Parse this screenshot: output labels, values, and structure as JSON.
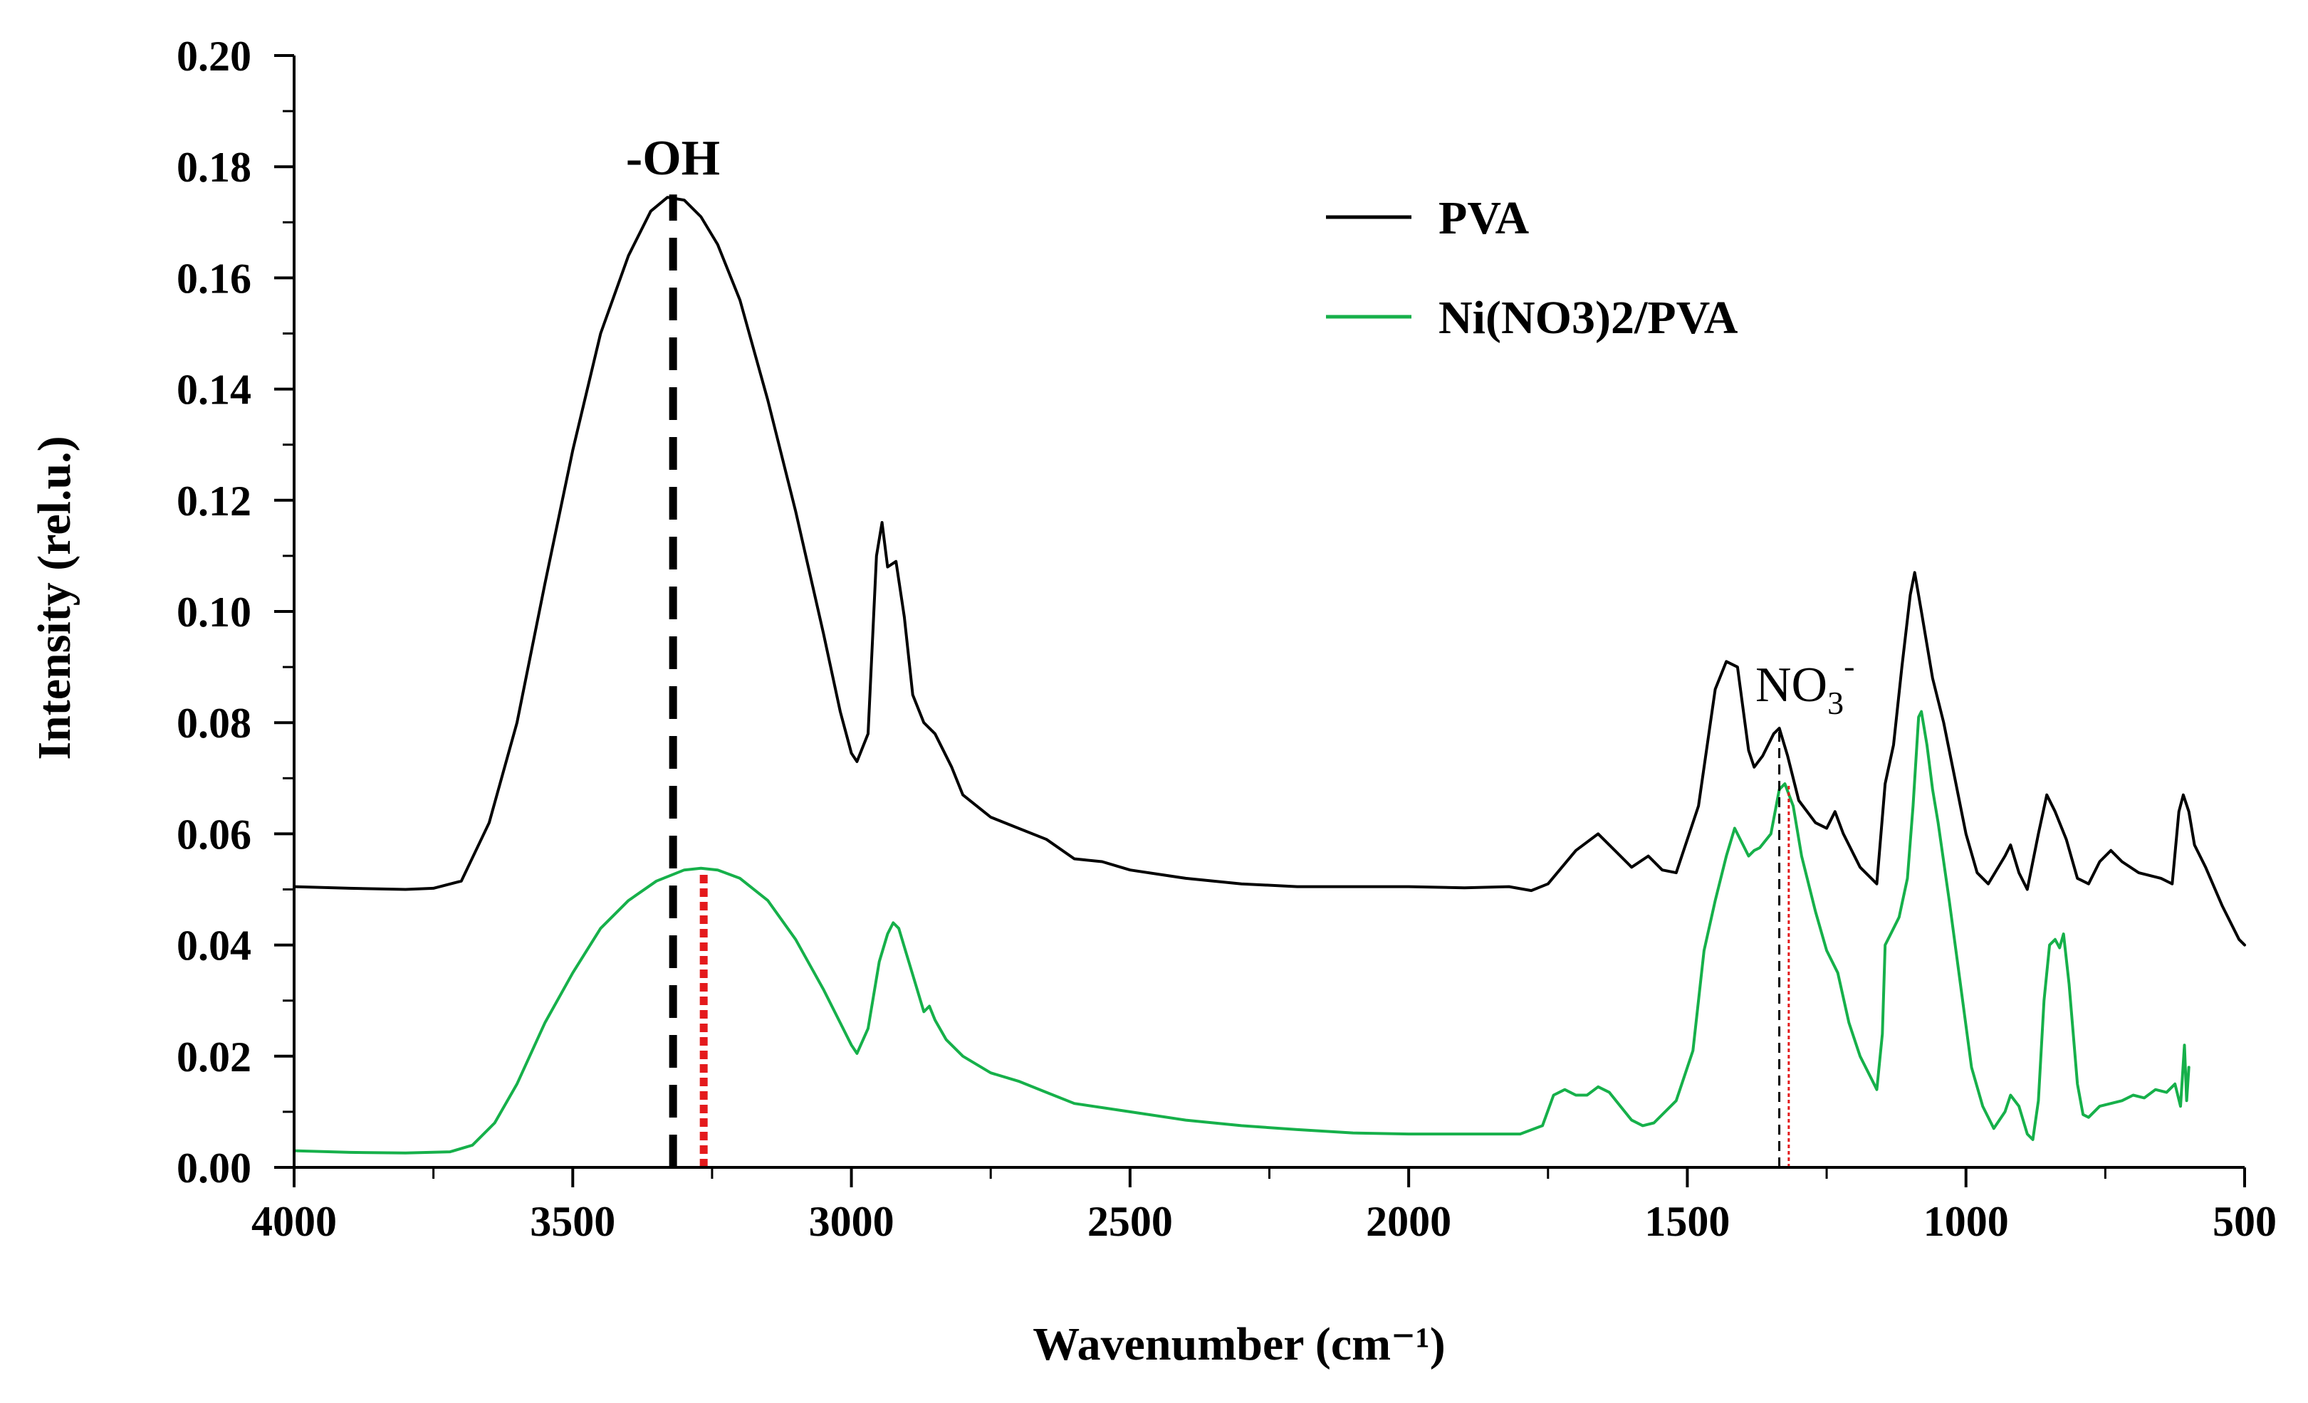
{
  "chart_data": {
    "type": "line",
    "title": "",
    "xlabel": "Wavenumber (cm⁻¹)",
    "ylabel": "Intensity (rel.u.)",
    "xlim": [
      4000,
      500
    ],
    "ylim": [
      0,
      0.2
    ],
    "x_ticks": [
      "4000",
      "3500",
      "3000",
      "2500",
      "2000",
      "1500",
      "1000",
      "500"
    ],
    "x_tick_values": [
      4000,
      3500,
      3000,
      2500,
      2000,
      1500,
      1000,
      500
    ],
    "y_ticks": [
      "0.00",
      "0.02",
      "0.04",
      "0.06",
      "0.08",
      "0.10",
      "0.12",
      "0.14",
      "0.16",
      "0.18",
      "0.20"
    ],
    "y_tick_values": [
      0,
      0.02,
      0.04,
      0.06,
      0.08,
      0.1,
      0.12,
      0.14,
      0.16,
      0.18,
      0.2
    ],
    "legend_position": "top-right",
    "series": [
      {
        "name": "PVA",
        "color": "#000000",
        "points": [
          [
            4000,
            0.0505
          ],
          [
            3900,
            0.0502
          ],
          [
            3800,
            0.05
          ],
          [
            3750,
            0.0502
          ],
          [
            3700,
            0.0515
          ],
          [
            3650,
            0.062
          ],
          [
            3600,
            0.08
          ],
          [
            3550,
            0.105
          ],
          [
            3500,
            0.129
          ],
          [
            3450,
            0.15
          ],
          [
            3400,
            0.164
          ],
          [
            3360,
            0.172
          ],
          [
            3330,
            0.1745
          ],
          [
            3300,
            0.174
          ],
          [
            3270,
            0.171
          ],
          [
            3240,
            0.166
          ],
          [
            3200,
            0.156
          ],
          [
            3150,
            0.138
          ],
          [
            3100,
            0.118
          ],
          [
            3050,
            0.096
          ],
          [
            3020,
            0.082
          ],
          [
            3000,
            0.0745
          ],
          [
            2990,
            0.073
          ],
          [
            2970,
            0.078
          ],
          [
            2955,
            0.11
          ],
          [
            2945,
            0.116
          ],
          [
            2935,
            0.108
          ],
          [
            2920,
            0.109
          ],
          [
            2905,
            0.099
          ],
          [
            2890,
            0.085
          ],
          [
            2870,
            0.08
          ],
          [
            2850,
            0.078
          ],
          [
            2820,
            0.072
          ],
          [
            2800,
            0.067
          ],
          [
            2750,
            0.063
          ],
          [
            2700,
            0.061
          ],
          [
            2650,
            0.059
          ],
          [
            2600,
            0.0555
          ],
          [
            2550,
            0.055
          ],
          [
            2500,
            0.0535
          ],
          [
            2400,
            0.052
          ],
          [
            2300,
            0.051
          ],
          [
            2200,
            0.0505
          ],
          [
            2100,
            0.0505
          ],
          [
            2000,
            0.0505
          ],
          [
            1900,
            0.0503
          ],
          [
            1820,
            0.0505
          ],
          [
            1780,
            0.0498
          ],
          [
            1750,
            0.051
          ],
          [
            1700,
            0.057
          ],
          [
            1660,
            0.06
          ],
          [
            1630,
            0.057
          ],
          [
            1600,
            0.054
          ],
          [
            1570,
            0.056
          ],
          [
            1545,
            0.0535
          ],
          [
            1520,
            0.053
          ],
          [
            1480,
            0.065
          ],
          [
            1450,
            0.086
          ],
          [
            1430,
            0.091
          ],
          [
            1410,
            0.09
          ],
          [
            1390,
            0.075
          ],
          [
            1380,
            0.072
          ],
          [
            1365,
            0.074
          ],
          [
            1345,
            0.078
          ],
          [
            1335,
            0.079
          ],
          [
            1320,
            0.074
          ],
          [
            1300,
            0.066
          ],
          [
            1270,
            0.062
          ],
          [
            1250,
            0.061
          ],
          [
            1235,
            0.064
          ],
          [
            1220,
            0.06
          ],
          [
            1190,
            0.054
          ],
          [
            1160,
            0.051
          ],
          [
            1145,
            0.069
          ],
          [
            1130,
            0.076
          ],
          [
            1115,
            0.09
          ],
          [
            1100,
            0.103
          ],
          [
            1092,
            0.107
          ],
          [
            1080,
            0.1
          ],
          [
            1060,
            0.088
          ],
          [
            1040,
            0.08
          ],
          [
            1020,
            0.07
          ],
          [
            1000,
            0.06
          ],
          [
            980,
            0.053
          ],
          [
            960,
            0.051
          ],
          [
            930,
            0.056
          ],
          [
            920,
            0.058
          ],
          [
            905,
            0.053
          ],
          [
            890,
            0.05
          ],
          [
            870,
            0.06
          ],
          [
            855,
            0.067
          ],
          [
            840,
            0.064
          ],
          [
            820,
            0.059
          ],
          [
            800,
            0.052
          ],
          [
            780,
            0.051
          ],
          [
            760,
            0.055
          ],
          [
            740,
            0.057
          ],
          [
            720,
            0.055
          ],
          [
            690,
            0.053
          ],
          [
            650,
            0.052
          ],
          [
            630,
            0.051
          ],
          [
            618,
            0.064
          ],
          [
            610,
            0.067
          ],
          [
            600,
            0.064
          ],
          [
            590,
            0.058
          ],
          [
            570,
            0.054
          ],
          [
            540,
            0.047
          ],
          [
            510,
            0.041
          ],
          [
            500,
            0.04
          ]
        ]
      },
      {
        "name": "Ni(NO3)2/PVA",
        "color": "#16b04a",
        "points": [
          [
            4000,
            0.003
          ],
          [
            3900,
            0.0027
          ],
          [
            3800,
            0.0026
          ],
          [
            3720,
            0.0028
          ],
          [
            3680,
            0.004
          ],
          [
            3640,
            0.008
          ],
          [
            3600,
            0.015
          ],
          [
            3550,
            0.026
          ],
          [
            3500,
            0.035
          ],
          [
            3450,
            0.043
          ],
          [
            3400,
            0.048
          ],
          [
            3350,
            0.0515
          ],
          [
            3300,
            0.0535
          ],
          [
            3270,
            0.0538
          ],
          [
            3240,
            0.0535
          ],
          [
            3200,
            0.052
          ],
          [
            3150,
            0.048
          ],
          [
            3100,
            0.041
          ],
          [
            3050,
            0.032
          ],
          [
            3020,
            0.026
          ],
          [
            3000,
            0.022
          ],
          [
            2990,
            0.0205
          ],
          [
            2970,
            0.025
          ],
          [
            2950,
            0.037
          ],
          [
            2935,
            0.042
          ],
          [
            2925,
            0.044
          ],
          [
            2915,
            0.043
          ],
          [
            2900,
            0.038
          ],
          [
            2885,
            0.033
          ],
          [
            2870,
            0.028
          ],
          [
            2860,
            0.029
          ],
          [
            2850,
            0.0265
          ],
          [
            2830,
            0.023
          ],
          [
            2800,
            0.02
          ],
          [
            2750,
            0.017
          ],
          [
            2700,
            0.0155
          ],
          [
            2650,
            0.0135
          ],
          [
            2600,
            0.0115
          ],
          [
            2500,
            0.01
          ],
          [
            2400,
            0.0085
          ],
          [
            2300,
            0.0075
          ],
          [
            2200,
            0.0068
          ],
          [
            2100,
            0.0062
          ],
          [
            2000,
            0.006
          ],
          [
            1900,
            0.006
          ],
          [
            1800,
            0.006
          ],
          [
            1760,
            0.0075
          ],
          [
            1740,
            0.013
          ],
          [
            1720,
            0.014
          ],
          [
            1700,
            0.013
          ],
          [
            1680,
            0.013
          ],
          [
            1660,
            0.0145
          ],
          [
            1640,
            0.0135
          ],
          [
            1620,
            0.011
          ],
          [
            1600,
            0.0085
          ],
          [
            1580,
            0.0075
          ],
          [
            1560,
            0.008
          ],
          [
            1520,
            0.012
          ],
          [
            1490,
            0.021
          ],
          [
            1470,
            0.039
          ],
          [
            1450,
            0.048
          ],
          [
            1430,
            0.056
          ],
          [
            1415,
            0.061
          ],
          [
            1400,
            0.058
          ],
          [
            1390,
            0.056
          ],
          [
            1380,
            0.057
          ],
          [
            1370,
            0.0575
          ],
          [
            1350,
            0.06
          ],
          [
            1335,
            0.068
          ],
          [
            1325,
            0.069
          ],
          [
            1310,
            0.065
          ],
          [
            1295,
            0.056
          ],
          [
            1270,
            0.046
          ],
          [
            1250,
            0.039
          ],
          [
            1230,
            0.035
          ],
          [
            1210,
            0.026
          ],
          [
            1190,
            0.02
          ],
          [
            1170,
            0.016
          ],
          [
            1160,
            0.014
          ],
          [
            1150,
            0.024
          ],
          [
            1145,
            0.04
          ],
          [
            1135,
            0.042
          ],
          [
            1120,
            0.045
          ],
          [
            1105,
            0.052
          ],
          [
            1095,
            0.065
          ],
          [
            1085,
            0.081
          ],
          [
            1080,
            0.082
          ],
          [
            1070,
            0.076
          ],
          [
            1060,
            0.068
          ],
          [
            1050,
            0.062
          ],
          [
            1030,
            0.048
          ],
          [
            1010,
            0.033
          ],
          [
            990,
            0.018
          ],
          [
            970,
            0.011
          ],
          [
            950,
            0.007
          ],
          [
            930,
            0.01
          ],
          [
            920,
            0.013
          ],
          [
            905,
            0.011
          ],
          [
            890,
            0.006
          ],
          [
            880,
            0.005
          ],
          [
            870,
            0.012
          ],
          [
            860,
            0.03
          ],
          [
            850,
            0.04
          ],
          [
            840,
            0.041
          ],
          [
            832,
            0.0395
          ],
          [
            825,
            0.042
          ],
          [
            815,
            0.033
          ],
          [
            800,
            0.015
          ],
          [
            790,
            0.0095
          ],
          [
            780,
            0.009
          ],
          [
            760,
            0.011
          ],
          [
            740,
            0.0115
          ],
          [
            720,
            0.012
          ],
          [
            700,
            0.013
          ],
          [
            680,
            0.0125
          ],
          [
            660,
            0.014
          ],
          [
            640,
            0.0135
          ],
          [
            625,
            0.015
          ],
          [
            615,
            0.011
          ],
          [
            608,
            0.022
          ],
          [
            604,
            0.012
          ],
          [
            600,
            0.018
          ]
        ]
      }
    ],
    "annotations": [
      {
        "label_main": "-OH",
        "label_sub": "",
        "label_sup": "",
        "x": 3320,
        "line_color": "#000000",
        "line_style": "dashed-thick",
        "y_bottom": 0,
        "y_top": 0.175
      },
      {
        "label_main": "",
        "label_sub": "",
        "label_sup": "",
        "x": 3265,
        "line_color": "#e41a1c",
        "line_style": "dotted-thick",
        "y_bottom": 0,
        "y_top": 0.0535
      },
      {
        "label_main": "NO",
        "label_sub": "3",
        "label_sup": "-",
        "x": 1335,
        "line_color": "#000000",
        "line_style": "dashed-thin",
        "y_bottom": 0,
        "y_top": 0.0785
      },
      {
        "label_main": "",
        "label_sub": "",
        "label_sup": "",
        "x": 1318,
        "line_color": "#e41a1c",
        "line_style": "dotted-thin",
        "y_bottom": 0,
        "y_top": 0.069
      }
    ]
  }
}
